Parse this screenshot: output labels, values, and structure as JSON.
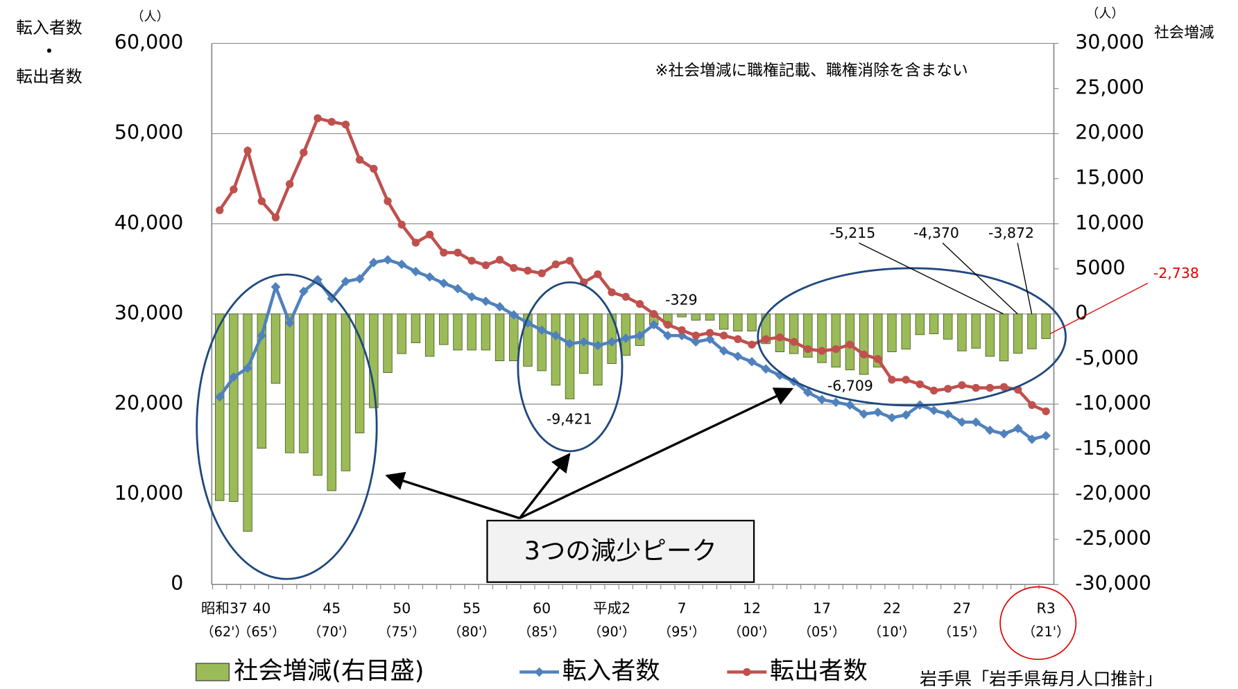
{
  "chart_data": {
    "type": "bar",
    "annotation": "※社会増減に職権記載、職権消除を含まない",
    "callout": "3つの減少ピーク",
    "source": "岩手県「岩手県毎月人口推計」",
    "ylabel": [
      "転入者数",
      "・",
      "転出者数"
    ],
    "y_unit": "（人）",
    "y2label": "社会増減",
    "y2_unit": "（人）",
    "categories": [
      "昭和37",
      null,
      null,
      "40",
      null,
      null,
      null,
      null,
      "45",
      null,
      null,
      null,
      null,
      "50",
      null,
      null,
      null,
      null,
      "55",
      null,
      null,
      null,
      null,
      "60",
      null,
      null,
      null,
      null,
      "平成2",
      null,
      null,
      null,
      null,
      "7",
      null,
      null,
      null,
      null,
      "12",
      null,
      null,
      null,
      null,
      "17",
      null,
      null,
      null,
      null,
      "22",
      null,
      null,
      null,
      null,
      "27",
      null,
      null,
      null,
      null,
      null,
      "R3"
    ],
    "category_sublabels": [
      "（62'）",
      null,
      null,
      "（65'）",
      null,
      null,
      null,
      null,
      "（70'）",
      null,
      null,
      null,
      null,
      "（75'）",
      null,
      null,
      null,
      null,
      "（80'）",
      null,
      null,
      null,
      null,
      "（85'）",
      null,
      null,
      null,
      null,
      "（90'）",
      null,
      null,
      null,
      null,
      "（95'）",
      null,
      null,
      null,
      null,
      "（00'）",
      null,
      null,
      null,
      null,
      "（05'）",
      null,
      null,
      null,
      null,
      "（10'）",
      null,
      null,
      null,
      null,
      "（15'）",
      null,
      null,
      null,
      null,
      null,
      "（21'）"
    ],
    "ylim": [
      0,
      60000
    ],
    "yticks": [
      {
        "value": 0,
        "label": "0"
      },
      {
        "value": 10000,
        "label": "10,000"
      },
      {
        "value": 20000,
        "label": "20,000"
      },
      {
        "value": 30000,
        "label": "30,000"
      },
      {
        "value": 40000,
        "label": "40,000"
      },
      {
        "value": 50000,
        "label": "50,000"
      },
      {
        "value": 60000,
        "label": "60,000"
      }
    ],
    "y2lim": [
      -30000,
      30000
    ],
    "y2ticks": [
      {
        "value": -30000,
        "label": "-30,000"
      },
      {
        "value": -25000,
        "label": "-25,000"
      },
      {
        "value": -20000,
        "label": "-20,000"
      },
      {
        "value": -15000,
        "label": "-15,000"
      },
      {
        "value": -10000,
        "label": "-10,000"
      },
      {
        "value": -5000,
        "label": "-5,000"
      },
      0,
      {
        "value": 5000,
        "label": "5000"
      },
      {
        "value": 10000,
        "label": "10,000"
      },
      {
        "value": 15000,
        "label": "15,000"
      },
      {
        "value": 20000,
        "label": "20,000"
      },
      {
        "value": 25000,
        "label": "25,000"
      },
      {
        "value": 30000,
        "label": "30,000"
      }
    ],
    "grid": true,
    "series": [
      {
        "name": "社会増減(右目盛)",
        "type": "bar",
        "axis": "y2",
        "color": "#9bbb59",
        "values": [
          -20700,
          -20800,
          -24100,
          -14900,
          -7700,
          -15400,
          -15400,
          -17900,
          -19600,
          -17400,
          -13200,
          -10400,
          -6500,
          -4400,
          -3200,
          -4700,
          -3400,
          -4000,
          -4000,
          -4000,
          -5200,
          -5200,
          -5800,
          -6300,
          -7900,
          -9421,
          -6600,
          -7900,
          -5500,
          -4600,
          -3500,
          -1200,
          -1200,
          -329,
          -700,
          -700,
          -1700,
          -1900,
          -1900,
          -3300,
          -4200,
          -4400,
          -4800,
          -5400,
          -5900,
          -6200,
          -6709,
          -5900,
          -4200,
          -3900,
          -2300,
          -2200,
          -2800,
          -4100,
          -3800,
          -4700,
          -5215,
          -4370,
          -3872,
          -2738
        ],
        "value_labels": [
          null,
          null,
          null,
          null,
          null,
          null,
          null,
          null,
          null,
          null,
          null,
          null,
          null,
          null,
          null,
          null,
          null,
          null,
          null,
          null,
          null,
          null,
          null,
          null,
          null,
          "-9,421",
          null,
          null,
          null,
          null,
          null,
          null,
          null,
          "-329",
          null,
          null,
          null,
          null,
          null,
          null,
          null,
          null,
          null,
          null,
          null,
          null,
          "-6,709",
          null,
          null,
          null,
          null,
          null,
          null,
          null,
          null,
          null,
          "-5,215",
          "-4,370",
          "-3,872",
          "-2,738"
        ]
      },
      {
        "name": "転入者数",
        "type": "line",
        "marker": "diamond",
        "color": "#4f81bd",
        "values": [
          20800,
          23000,
          24000,
          27600,
          33000,
          29000,
          32500,
          33800,
          31700,
          33600,
          33900,
          35700,
          36000,
          35500,
          34700,
          34100,
          33400,
          32800,
          31900,
          31400,
          30800,
          29900,
          29000,
          28200,
          27600,
          26700,
          26900,
          26500,
          26900,
          27300,
          27600,
          28800,
          27600,
          27600,
          26900,
          27200,
          25900,
          25300,
          24700,
          23900,
          23200,
          22500,
          21300,
          20500,
          20200,
          19900,
          18900,
          19100,
          18500,
          18800,
          19900,
          19300,
          18900,
          18000,
          18000,
          17100,
          16700,
          17300,
          16100,
          16500
        ]
      },
      {
        "name": "転出者数",
        "type": "line",
        "marker": "circle",
        "color": "#c0504d",
        "values": [
          41500,
          43800,
          48100,
          42500,
          40700,
          44400,
          47900,
          51700,
          51300,
          51000,
          47100,
          46100,
          42500,
          39900,
          37900,
          38800,
          36800,
          36800,
          35900,
          35400,
          36000,
          35100,
          34800,
          34500,
          35500,
          35900,
          33500,
          34400,
          32400,
          31900,
          31100,
          30000,
          28800,
          28200,
          27600,
          27900,
          27600,
          27200,
          26600,
          27200,
          27400,
          26900,
          26100,
          25900,
          26100,
          26600,
          25500,
          25000,
          22700,
          22700,
          22200,
          21500,
          21700,
          22100,
          21800,
          21800,
          21900,
          21600,
          19900,
          19200
        ]
      }
    ]
  }
}
